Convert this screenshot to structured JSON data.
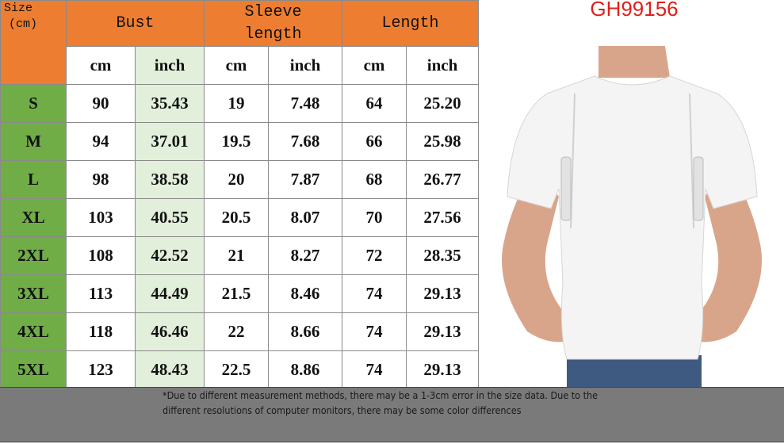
{
  "product_code": "GH99156",
  "colors": {
    "header": "#ED7D31",
    "size_column": "#70AD47",
    "inch_highlight": "#E2EFDA",
    "code": "#E0201B",
    "note_band": "#7a7a7a"
  },
  "table": {
    "size_header": [
      "Size",
      "(cm)"
    ],
    "groups": [
      {
        "label": [
          "Bust"
        ]
      },
      {
        "label": [
          "Sleeve",
          "length"
        ]
      },
      {
        "label": [
          "Length"
        ]
      }
    ],
    "units": [
      "cm",
      "inch",
      "cm",
      "inch",
      "cm",
      "inch"
    ],
    "rows": [
      {
        "size": "S",
        "values": [
          "90",
          "35.43",
          "19",
          "7.48",
          "64",
          "25.20"
        ]
      },
      {
        "size": "M",
        "values": [
          "94",
          "37.01",
          "19.5",
          "7.68",
          "66",
          "25.98"
        ]
      },
      {
        "size": "L",
        "values": [
          "98",
          "38.58",
          "20",
          "7.87",
          "68",
          "26.77"
        ]
      },
      {
        "size": "XL",
        "values": [
          "103",
          "40.55",
          "20.5",
          "8.07",
          "70",
          "27.56"
        ]
      },
      {
        "size": "2XL",
        "values": [
          "108",
          "42.52",
          "21",
          "8.27",
          "72",
          "28.35"
        ]
      },
      {
        "size": "3XL",
        "values": [
          "113",
          "44.49",
          "21.5",
          "8.46",
          "74",
          "29.13"
        ]
      },
      {
        "size": "4XL",
        "values": [
          "118",
          "46.46",
          "22",
          "8.66",
          "74",
          "29.13"
        ]
      },
      {
        "size": "5XL",
        "values": [
          "123",
          "48.43",
          "22.5",
          "8.86",
          "74",
          "29.13"
        ]
      }
    ]
  },
  "note": "*Due to different measurement methods, there may be a 1-3cm error in the size data. Due to the different resolutions of computer monitors, there may be some color differences"
}
